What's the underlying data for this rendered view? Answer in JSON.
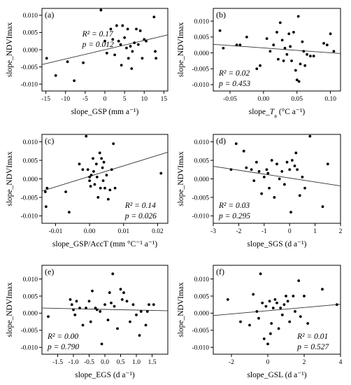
{
  "chart_data": [
    {
      "type": "scatter",
      "panel_label": "(a)",
      "xlabel": "slope_GSP (mm a⁻¹)",
      "ylabel": "slope_NDVImax",
      "xlim": [
        -16,
        16
      ],
      "ylim": [
        -0.012,
        0.012
      ],
      "xticks": [
        -15,
        -10,
        -5,
        0,
        5,
        10,
        15
      ],
      "xtick_labels": [
        "-15",
        "-10",
        "-5",
        "0",
        "5",
        "10",
        "15"
      ],
      "yticks": [
        -0.01,
        -0.005,
        0,
        0.005,
        0.01
      ],
      "ytick_labels": [
        "-0.010",
        "-0.005",
        "0.000",
        "0.005",
        "0.010"
      ],
      "annotation": [
        "R² = 0.17",
        "p = 0.012"
      ],
      "annotation_position": "top-center",
      "regression": {
        "x": [
          -16,
          16
        ],
        "y": [
          -0.0043,
          0.0043
        ]
      },
      "points": [
        [
          -14.8,
          -0.0025
        ],
        [
          -12.5,
          -0.0075
        ],
        [
          -9.5,
          -0.0035
        ],
        [
          -7.8,
          -0.009
        ],
        [
          -5.5,
          -0.0038
        ],
        [
          -1,
          0.0115
        ],
        [
          0,
          0.0025
        ],
        [
          0.5,
          -0.001
        ],
        [
          1.5,
          0.006
        ],
        [
          2,
          0.003
        ],
        [
          2.5,
          -0.0015
        ],
        [
          3,
          0.007
        ],
        [
          3.5,
          0.0025
        ],
        [
          4,
          0.0015
        ],
        [
          4.2,
          -0.0045
        ],
        [
          4.5,
          0.007
        ],
        [
          5,
          0.0035
        ],
        [
          5.5,
          0.0005
        ],
        [
          5.8,
          0.006
        ],
        [
          6,
          -0.0025
        ],
        [
          6.5,
          0.001
        ],
        [
          6.8,
          -0.0055
        ],
        [
          7,
          -0.0005
        ],
        [
          7.5,
          0.002
        ],
        [
          8,
          0.006
        ],
        [
          8.5,
          0.0015
        ],
        [
          9,
          0.0055
        ],
        [
          9.5,
          -0.0025
        ],
        [
          10,
          0.003
        ],
        [
          10.5,
          0.0025
        ],
        [
          12.5,
          0.0095
        ],
        [
          12.8,
          -0.0005
        ],
        [
          13,
          -0.0025
        ]
      ]
    },
    {
      "type": "scatter",
      "panel_label": "(b)",
      "xlabel": "slope_Ta (°C a⁻¹)",
      "xlabel_parts": {
        "pre": "slope_",
        "var": "T",
        "sub": "a",
        "post": " (°C a",
        "sup": "⁻¹",
        "end": ")"
      },
      "ylabel": "slope_NDVImax",
      "xlim": [
        -0.075,
        0.115
      ],
      "ylim": [
        -0.012,
        0.014
      ],
      "xticks": [
        -0.05,
        0,
        0.05,
        0.1
      ],
      "xtick_labels": [
        "-0.05",
        "0.00",
        "0.05",
        "0.10"
      ],
      "yticks": [
        -0.01,
        -0.005,
        0,
        0.005,
        0.01
      ],
      "ytick_labels": [
        "-0.010",
        "-0.005",
        "0.000",
        "0.005",
        "0.010"
      ],
      "annotation": [
        "R² = 0.02",
        "p = 0.453"
      ],
      "annotation_position": "bottom-left",
      "regression": {
        "x": [
          -0.075,
          0.115
        ],
        "y": [
          0.0027,
          -0.0002
        ]
      },
      "points": [
        [
          -0.065,
          0.007
        ],
        [
          -0.06,
          0.0015
        ],
        [
          -0.04,
          0.0025
        ],
        [
          -0.035,
          0.0025
        ],
        [
          -0.025,
          0.005
        ],
        [
          -0.01,
          -0.005
        ],
        [
          -0.005,
          -0.004
        ],
        [
          0.005,
          0.0045
        ],
        [
          0.01,
          0.0005
        ],
        [
          0.015,
          0.0025
        ],
        [
          0.02,
          0.0065
        ],
        [
          0.022,
          -0.002
        ],
        [
          0.025,
          0.0095
        ],
        [
          0.028,
          0.004
        ],
        [
          0.03,
          -0.0025
        ],
        [
          0.032,
          0.0015
        ],
        [
          0.035,
          -0.0005
        ],
        [
          0.038,
          0.006
        ],
        [
          0.04,
          0.002
        ],
        [
          0.042,
          -0.0025
        ],
        [
          0.045,
          0.0065
        ],
        [
          0.048,
          -0.0055
        ],
        [
          0.05,
          -0.0085
        ],
        [
          0.052,
          0.0115
        ],
        [
          0.053,
          -0.009
        ],
        [
          0.055,
          -0.0035
        ],
        [
          0.058,
          0.0035
        ],
        [
          0.06,
          0.0005
        ],
        [
          0.062,
          -0.004
        ],
        [
          0.065,
          -0.0005
        ],
        [
          0.07,
          -0.001
        ],
        [
          0.075,
          -0.001
        ],
        [
          0.09,
          0.003
        ],
        [
          0.095,
          0.0025
        ],
        [
          0.1,
          0.006
        ],
        [
          0.105,
          0.0005
        ]
      ]
    },
    {
      "type": "scatter",
      "panel_label": "(c)",
      "xlabel": "slope_GSP/AccT (mm °C⁻¹ a⁻¹)",
      "ylabel": "slope_NDVImax",
      "xlim": [
        -0.014,
        0.023
      ],
      "ylim": [
        -0.012,
        0.012
      ],
      "xticks": [
        -0.01,
        0,
        0.01,
        0.02
      ],
      "xtick_labels": [
        "-0.01",
        "0.00",
        "0.01",
        "0.02"
      ],
      "yticks": [
        -0.01,
        -0.005,
        0,
        0.005,
        0.01
      ],
      "ytick_labels": [
        "-0.010",
        "-0.005",
        "0.000",
        "0.005",
        "0.010"
      ],
      "annotation": [
        "R² = 0.14",
        "p = 0.026"
      ],
      "annotation_position": "bottom-right",
      "regression": {
        "x": [
          -0.014,
          0.023
        ],
        "y": [
          -0.0033,
          0.0072
        ]
      },
      "points": [
        [
          -0.013,
          -0.0035
        ],
        [
          -0.0128,
          -0.0075
        ],
        [
          -0.0125,
          -0.0025
        ],
        [
          -0.007,
          -0.0035
        ],
        [
          -0.006,
          -0.009
        ],
        [
          -0.003,
          0.004
        ],
        [
          -0.002,
          0.0025
        ],
        [
          -0.001,
          0.0115
        ],
        [
          -0.0005,
          0.0025
        ],
        [
          0,
          0.0005
        ],
        [
          0,
          -0.0005
        ],
        [
          0.0003,
          -0.002
        ],
        [
          0.0005,
          0.001
        ],
        [
          0.001,
          0.0055
        ],
        [
          0.0012,
          0.002
        ],
        [
          0.0015,
          -0.0015
        ],
        [
          0.002,
          0.004
        ],
        [
          0.0022,
          0.0005
        ],
        [
          0.0025,
          -0.005
        ],
        [
          0.003,
          0.007
        ],
        [
          0.0032,
          -0.0025
        ],
        [
          0.0035,
          0.0055
        ],
        [
          0.0038,
          0.003
        ],
        [
          0.004,
          -0.0005
        ],
        [
          0.0042,
          0.0045
        ],
        [
          0.0045,
          -0.0025
        ],
        [
          0.005,
          0.001
        ],
        [
          0.0055,
          -0.0055
        ],
        [
          0.006,
          -0.003
        ],
        [
          0.0065,
          0.0025
        ],
        [
          0.007,
          0.0095
        ],
        [
          0.0075,
          -0.0025
        ],
        [
          0.021,
          0.0015
        ]
      ]
    },
    {
      "type": "scatter",
      "panel_label": "(d)",
      "xlabel": "slope_SGS (d a⁻¹)",
      "ylabel": "slope_NDVImax",
      "xlim": [
        -3,
        2
      ],
      "ylim": [
        -0.012,
        0.012
      ],
      "xticks": [
        -3,
        -2,
        -1,
        0,
        1,
        2
      ],
      "xtick_labels": [
        "-3",
        "-2",
        "-1",
        "0",
        "1",
        "2"
      ],
      "yticks": [
        -0.01,
        -0.005,
        0,
        0.005,
        0.01
      ],
      "ytick_labels": [
        "-0.010",
        "-0.005",
        "0.000",
        "0.005",
        "0.010"
      ],
      "annotation": [
        "R² = 0.03",
        "p = 0.295"
      ],
      "annotation_position": "bottom-left",
      "regression": {
        "x": [
          -3,
          2
        ],
        "y": [
          0.0034,
          -0.0019
        ]
      },
      "points": [
        [
          -2.3,
          0.0025
        ],
        [
          -2.1,
          0.0095
        ],
        [
          -1.8,
          0.0075
        ],
        [
          -1.7,
          0.003
        ],
        [
          -1.5,
          0.0025
        ],
        [
          -1.4,
          -0.0005
        ],
        [
          -1.3,
          0.0045
        ],
        [
          -1.2,
          0.002
        ],
        [
          -1.1,
          -0.004
        ],
        [
          -1,
          0.0005
        ],
        [
          -0.9,
          0.0025
        ],
        [
          -0.85,
          0.0015
        ],
        [
          -0.8,
          -0.0025
        ],
        [
          -0.7,
          0.005
        ],
        [
          -0.6,
          -0.005
        ],
        [
          -0.5,
          0.004
        ],
        [
          -0.4,
          0
        ],
        [
          -0.3,
          0.002
        ],
        [
          -0.2,
          -0.0015
        ],
        [
          -0.1,
          0.0045
        ],
        [
          0,
          0.0025
        ],
        [
          0.05,
          -0.009
        ],
        [
          0.1,
          0.005
        ],
        [
          0.2,
          0.0035
        ],
        [
          0.25,
          0.007
        ],
        [
          0.3,
          0.0025
        ],
        [
          0.4,
          -0.0045
        ],
        [
          0.5,
          0.0005
        ],
        [
          0.6,
          -0.0025
        ],
        [
          0.8,
          0.0115
        ],
        [
          1.3,
          -0.0075
        ],
        [
          1.5,
          0.004
        ]
      ]
    },
    {
      "type": "scatter",
      "panel_label": "(e)",
      "xlabel": "slope_EGS  (d a⁻¹)",
      "ylabel": "slope_NDVImax",
      "xlim": [
        -2,
        2
      ],
      "ylim": [
        -0.012,
        0.014
      ],
      "xticks": [
        -1.5,
        -1,
        -0.5,
        0,
        0.5,
        1,
        1.5
      ],
      "xtick_labels": [
        "-1.5",
        "-1.0",
        "-0.5",
        "0.0",
        "0.5",
        "1.0",
        "1.5"
      ],
      "yticks": [
        -0.01,
        -0.005,
        0,
        0.005,
        0.01
      ],
      "ytick_labels": [
        "-0.010",
        "-0.005",
        "0.000",
        "0.005",
        "0.010"
      ],
      "annotation": [
        "R² = 0.00",
        "p = 0.790"
      ],
      "annotation_position": "bottom-left",
      "regression": {
        "x": [
          -2,
          2
        ],
        "y": [
          0.0015,
          0.0007
        ]
      },
      "points": [
        [
          -1.8,
          -0.001
        ],
        [
          -1.1,
          0.004
        ],
        [
          -1.05,
          0.0025
        ],
        [
          -1,
          0.001
        ],
        [
          -0.95,
          -0.0005
        ],
        [
          -0.9,
          0.0035
        ],
        [
          -0.8,
          0.0015
        ],
        [
          -0.7,
          -0.0035
        ],
        [
          -0.6,
          0.0015
        ],
        [
          -0.5,
          0.0035
        ],
        [
          -0.45,
          -0.0025
        ],
        [
          -0.4,
          0.0065
        ],
        [
          -0.3,
          0.0015
        ],
        [
          -0.25,
          0.001
        ],
        [
          -0.15,
          0.0005
        ],
        [
          -0.1,
          -0.009
        ],
        [
          0,
          0.0025
        ],
        [
          0.1,
          -0.002
        ],
        [
          0.15,
          0.006
        ],
        [
          0.2,
          0.003
        ],
        [
          0.25,
          0.0115
        ],
        [
          0.3,
          0.002
        ],
        [
          0.4,
          -0.0045
        ],
        [
          0.5,
          0.007
        ],
        [
          0.55,
          0.004
        ],
        [
          0.6,
          0.006
        ],
        [
          0.7,
          0.0035
        ],
        [
          0.8,
          -0.0025
        ],
        [
          0.9,
          0.0025
        ],
        [
          1,
          -0.0005
        ],
        [
          1.1,
          -0.0065
        ],
        [
          1.15,
          0.0005
        ],
        [
          1.3,
          -0.0035
        ],
        [
          1.35,
          0.0005
        ],
        [
          1.4,
          0.0025
        ],
        [
          1.55,
          0.0025
        ]
      ]
    },
    {
      "type": "scatter",
      "panel_label": "(f)",
      "xlabel": "slope_GSL  (d a⁻¹)",
      "ylabel": "slope_NDVImax",
      "xlim": [
        -3,
        4
      ],
      "ylim": [
        -0.012,
        0.014
      ],
      "xticks": [
        -2,
        0,
        2,
        4
      ],
      "xtick_labels": [
        "-2",
        "0",
        "2",
        "4"
      ],
      "yticks": [
        -0.01,
        -0.005,
        0,
        0.005,
        0.01
      ],
      "ytick_labels": [
        "-0.010",
        "-0.005",
        "0.000",
        "0.005",
        "0.010"
      ],
      "annotation": [
        "R² = 0.01",
        "p = 0.527"
      ],
      "annotation_position": "bottom-right",
      "regression": {
        "x": [
          -3,
          4
        ],
        "y": [
          -0.0007,
          0.0026
        ]
      },
      "points": [
        [
          -2.2,
          0.004
        ],
        [
          -1.5,
          -0.0025
        ],
        [
          -1,
          -0.0035
        ],
        [
          -0.8,
          0.0055
        ],
        [
          -0.6,
          0.0005
        ],
        [
          -0.5,
          -0.0015
        ],
        [
          -0.4,
          0.0115
        ],
        [
          -0.3,
          0.003
        ],
        [
          -0.2,
          -0.0075
        ],
        [
          -0.1,
          0.002
        ],
        [
          0,
          -0.009
        ],
        [
          0.1,
          0.0035
        ],
        [
          0.15,
          -0.006
        ],
        [
          0.2,
          -0.003
        ],
        [
          0.3,
          0.0015
        ],
        [
          0.4,
          0.004
        ],
        [
          0.5,
          0.003
        ],
        [
          0.6,
          -0.0045
        ],
        [
          0.7,
          0.0015
        ],
        [
          0.8,
          -0.0005
        ],
        [
          0.9,
          0.0025
        ],
        [
          1,
          0.005
        ],
        [
          1.1,
          0.0035
        ],
        [
          1.2,
          -0.0025
        ],
        [
          1.4,
          0.005
        ],
        [
          1.5,
          0.0005
        ],
        [
          1.7,
          0.0095
        ],
        [
          1.8,
          -0.001
        ],
        [
          2,
          0.005
        ],
        [
          2.2,
          -0.003
        ],
        [
          3,
          0.007
        ],
        [
          3.8,
          0.0025
        ]
      ]
    }
  ]
}
